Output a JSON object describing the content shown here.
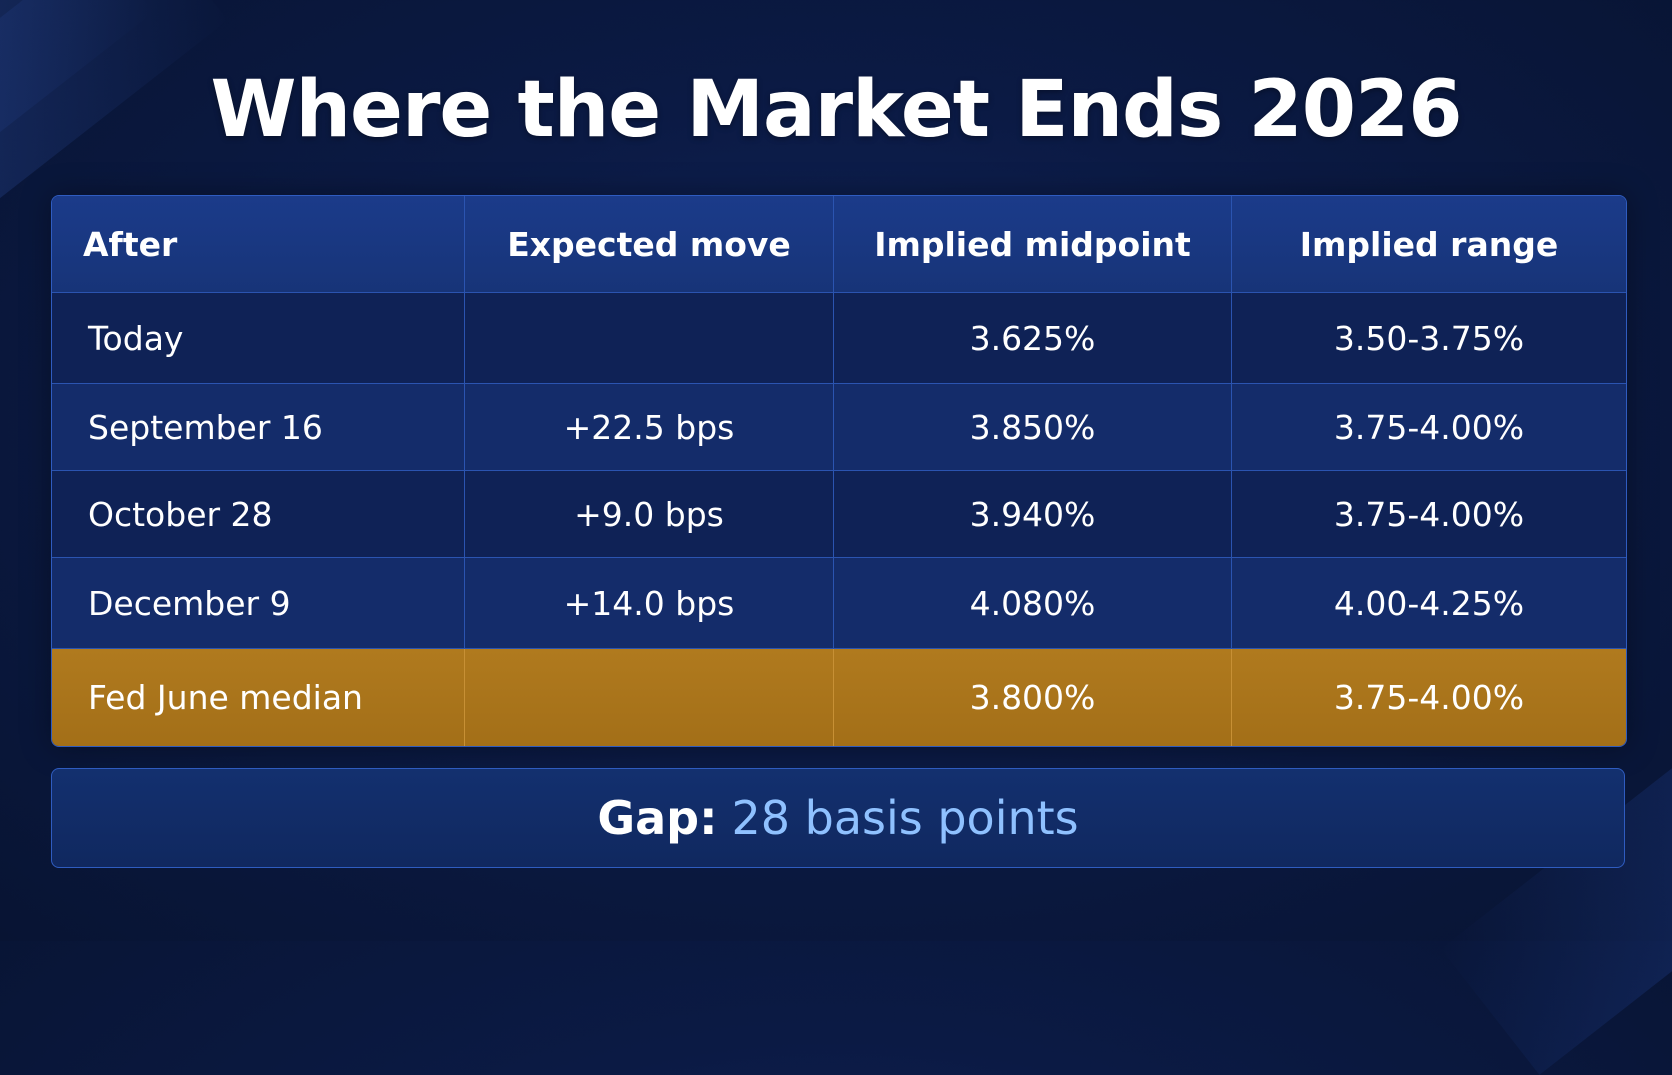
{
  "title": "Where the Market Ends 2026",
  "chart_data": {
    "type": "table",
    "title": "Where the Market Ends 2026",
    "columns": [
      "After",
      "Expected move",
      "Implied midpoint",
      "Implied range"
    ],
    "rows": [
      {
        "after": "Today",
        "expected_move": "",
        "implied_midpoint": "3.625%",
        "implied_range": "3.50-3.75%"
      },
      {
        "after": "September 16",
        "expected_move": "+22.5 bps",
        "implied_midpoint": "3.850%",
        "implied_range": "3.75-4.00%"
      },
      {
        "after": "October 28",
        "expected_move": "+9.0 bps",
        "implied_midpoint": "3.940%",
        "implied_range": "3.75-4.00%"
      },
      {
        "after": "December 9",
        "expected_move": "+14.0 bps",
        "implied_midpoint": "4.080%",
        "implied_range": "4.00-4.25%"
      },
      {
        "after": "Fed June median",
        "expected_move": "",
        "implied_midpoint": "3.800%",
        "implied_range": "3.75-4.00%",
        "highlighted": true
      }
    ]
  },
  "gap": {
    "label": "Gap:",
    "value": "28 basis points"
  },
  "colors": {
    "background": "#0b1a44",
    "header": "#1b3b8a",
    "highlight_row": "#b07a1e",
    "gap_value": "#8fc1ff",
    "grid": "#2b54b0"
  }
}
